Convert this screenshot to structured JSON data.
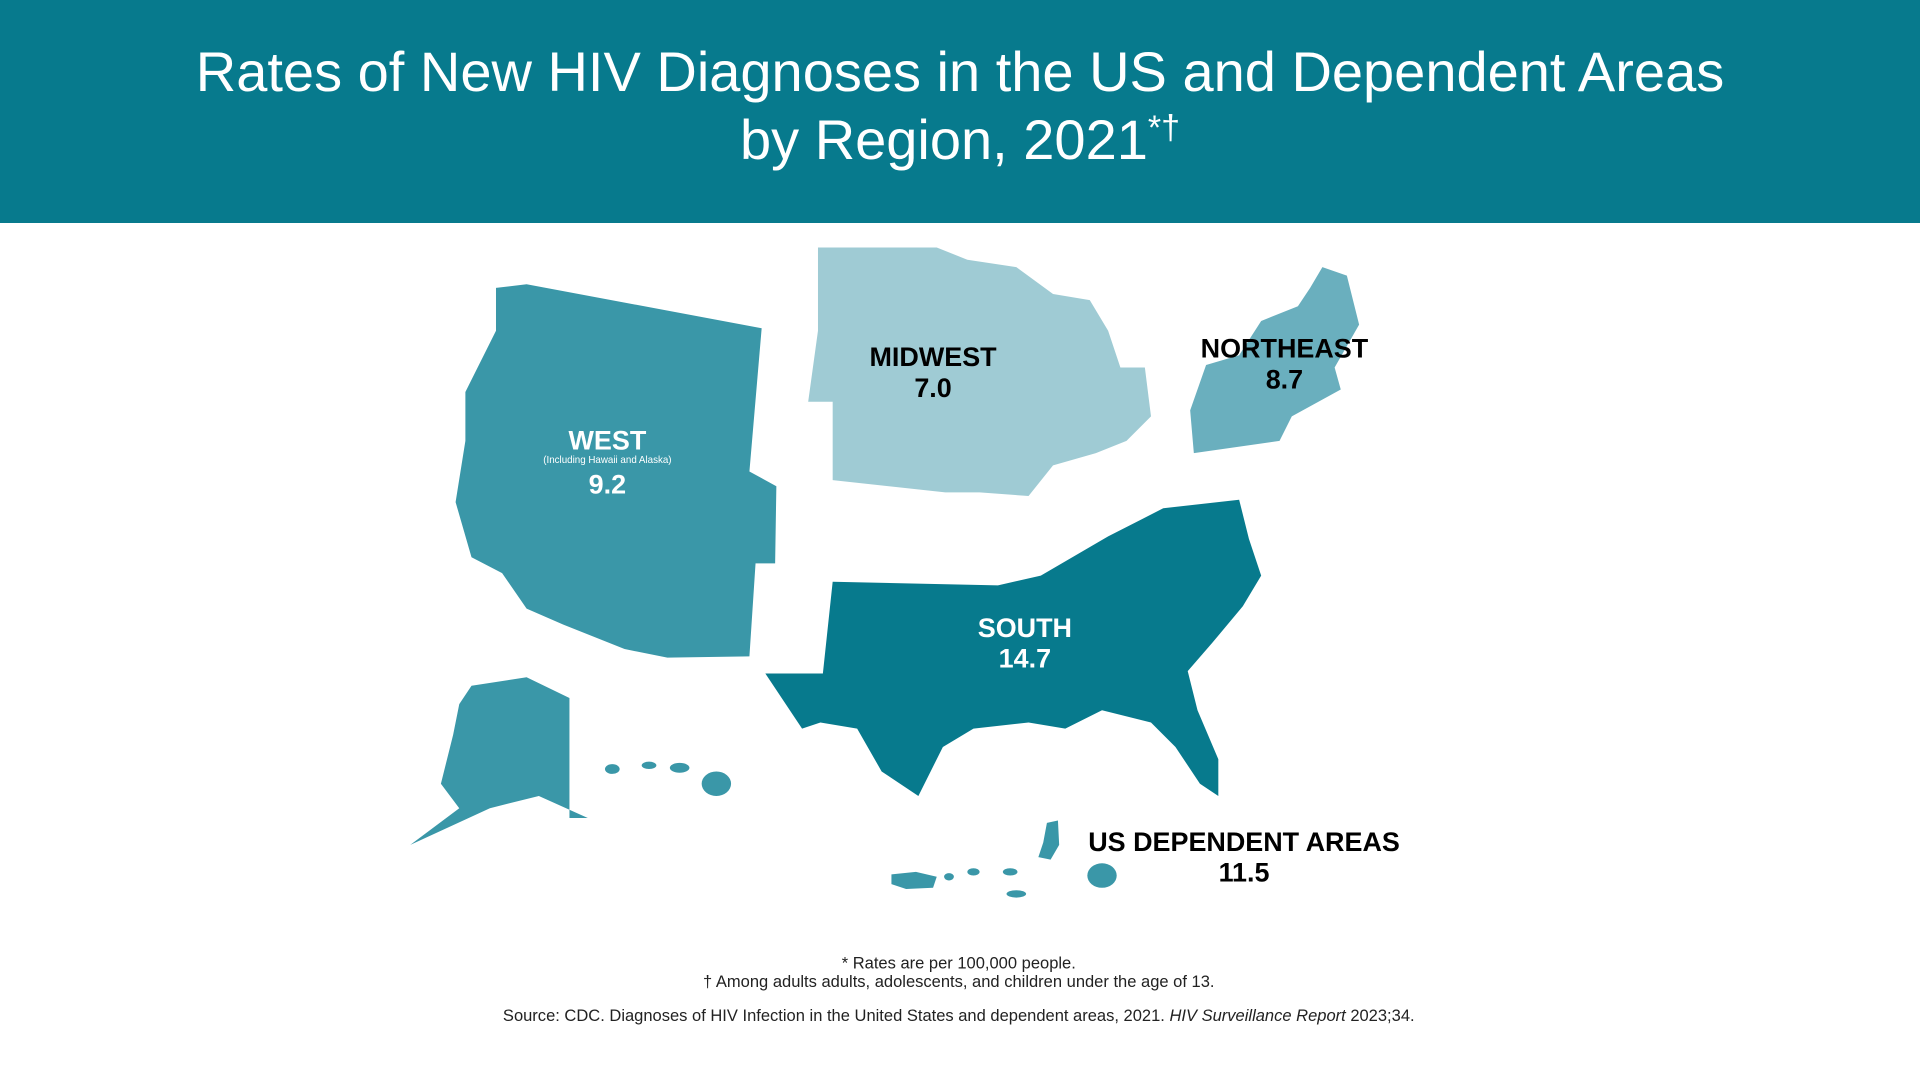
{
  "header": {
    "title": [
      "Rates of New HIV Diagnoses in the US and Dependent Areas",
      "by Region, 2021"
    ],
    "title_superscript": "*†"
  },
  "regions": [
    {
      "name": "WEST",
      "note": "(Including Hawaii and Alaska)",
      "rate": 9.2,
      "color": "#3a97a8"
    },
    {
      "name": "MIDWEST",
      "rate": 7.0,
      "color": "#9fcbd4"
    },
    {
      "name": "NORTHEAST",
      "rate": 8.7,
      "color": "#6aafbe"
    },
    {
      "name": "SOUTH",
      "rate": 14.7,
      "color": "#077a8d"
    },
    {
      "name": "US DEPENDENT AREAS",
      "rate": 11.5,
      "color": "#3a97a8"
    }
  ],
  "footnotes": [
    "* Rates are per 100,000 people.",
    "† Among adults adults, adolescents, and children under the age of 13."
  ],
  "source": {
    "text": "Source: CDC. Diagnoses of HIV Infection in the United States and dependent areas, 2021.",
    "journal": "HIV Surveillance Report",
    "citation": "2023;34."
  }
}
